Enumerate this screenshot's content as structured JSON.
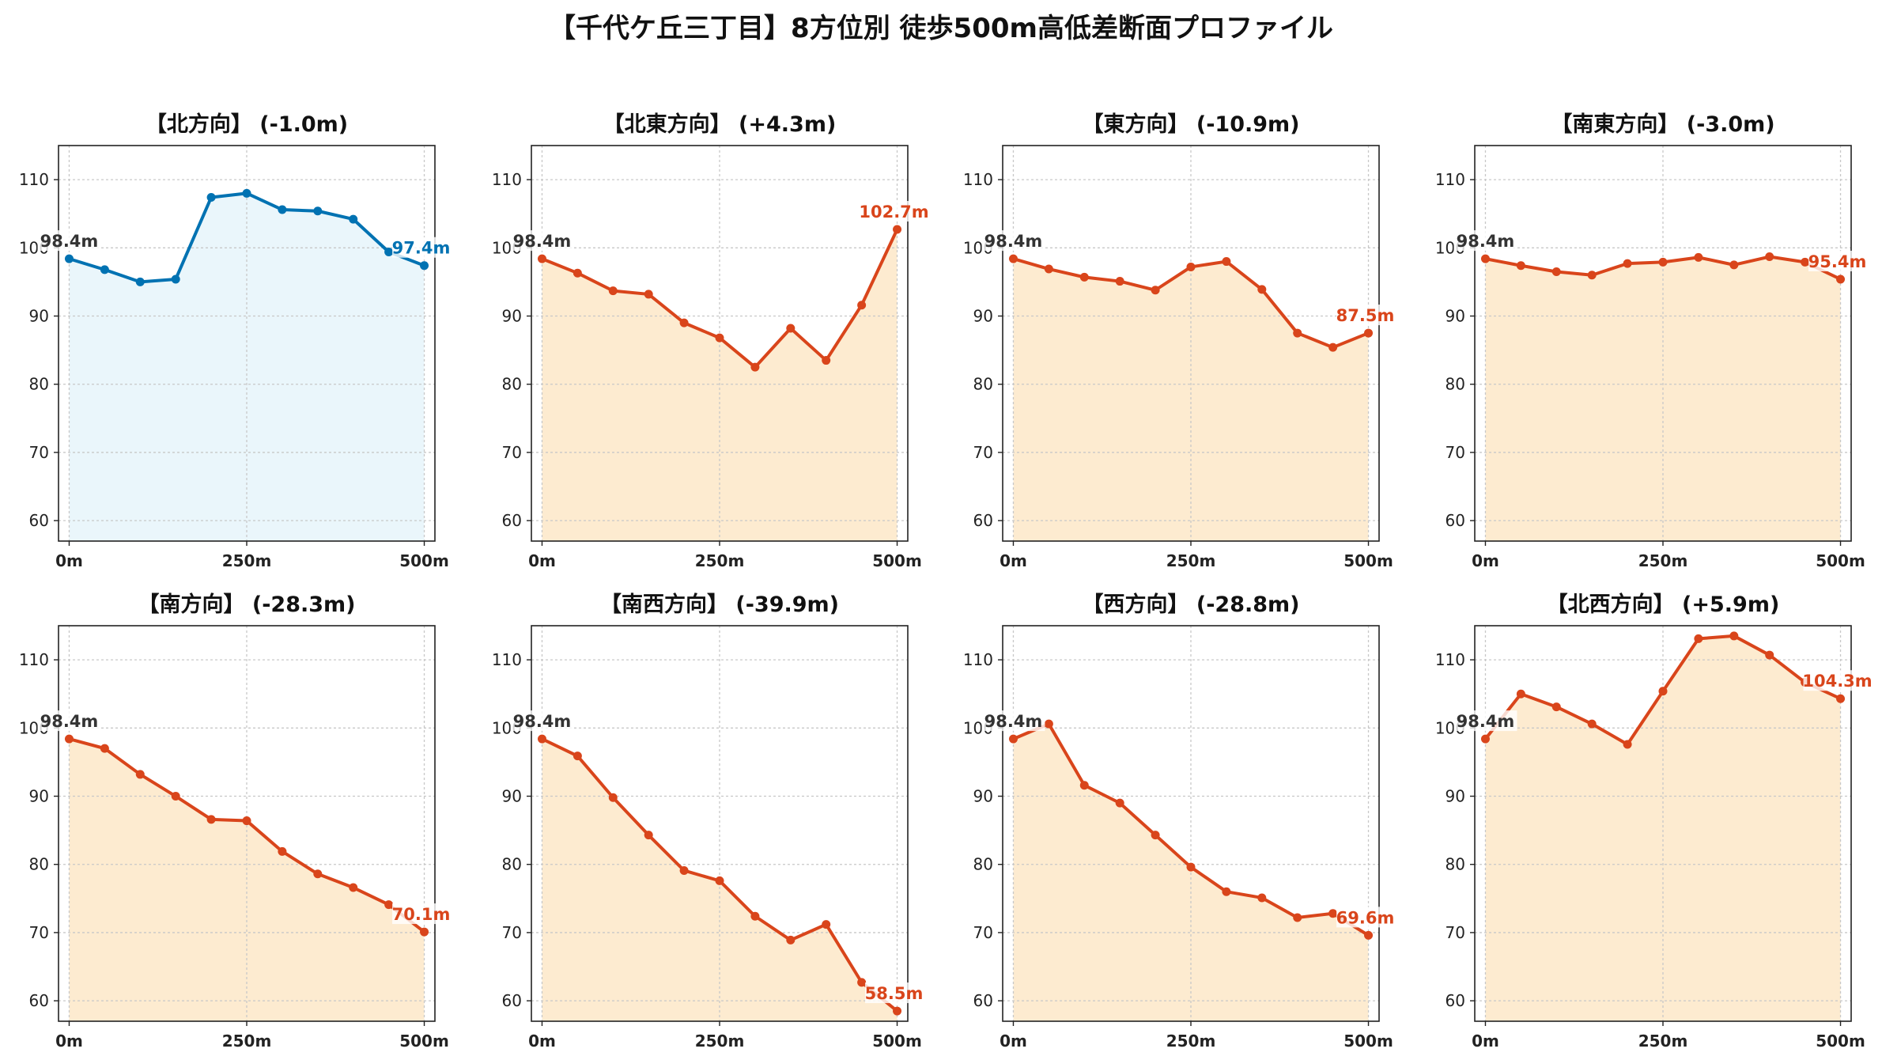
{
  "title": "【千代ケ丘三丁目】8方位別 徒歩500m高低差断面プロファイル",
  "colors": {
    "up_line": "#0072b2",
    "up_fill": "#eaf6fb",
    "down_line": "#d9451b",
    "down_fill": "#fdebd0",
    "start_label": "#333333"
  },
  "chart_data": [
    {
      "type": "line",
      "title": "【北方向】 (-1.0m)",
      "trend": "up",
      "x": [
        0,
        50,
        100,
        150,
        200,
        250,
        300,
        350,
        400,
        450,
        500
      ],
      "y": [
        98.4,
        96.8,
        95.0,
        95.4,
        107.4,
        108.0,
        105.6,
        105.4,
        104.2,
        99.4,
        97.4
      ],
      "start_label": "98.4m",
      "end_label": "97.4m",
      "xticks": [
        "0m",
        "250m",
        "500m"
      ],
      "yticks": [
        60,
        70,
        80,
        90,
        100,
        110
      ],
      "xlim": [
        -15,
        515
      ],
      "ylim": [
        57,
        115
      ],
      "grid": true
    },
    {
      "type": "line",
      "title": "【北東方向】 (+4.3m)",
      "trend": "down",
      "x": [
        0,
        50,
        100,
        150,
        200,
        250,
        300,
        350,
        400,
        450,
        500
      ],
      "y": [
        98.4,
        96.3,
        93.7,
        93.2,
        89.0,
        86.8,
        82.5,
        88.2,
        83.5,
        91.6,
        102.7
      ],
      "start_label": "98.4m",
      "end_label": "102.7m",
      "xticks": [
        "0m",
        "250m",
        "500m"
      ],
      "yticks": [
        60,
        70,
        80,
        90,
        100,
        110
      ],
      "xlim": [
        -15,
        515
      ],
      "ylim": [
        57,
        115
      ],
      "grid": true
    },
    {
      "type": "line",
      "title": "【東方向】 (-10.9m)",
      "trend": "down",
      "x": [
        0,
        50,
        100,
        150,
        200,
        250,
        300,
        350,
        400,
        450,
        500
      ],
      "y": [
        98.4,
        96.9,
        95.7,
        95.1,
        93.8,
        97.2,
        98.0,
        93.9,
        87.5,
        85.4,
        87.5
      ],
      "start_label": "98.4m",
      "end_label": "87.5m",
      "xticks": [
        "0m",
        "250m",
        "500m"
      ],
      "yticks": [
        60,
        70,
        80,
        90,
        100,
        110
      ],
      "xlim": [
        -15,
        515
      ],
      "ylim": [
        57,
        115
      ],
      "grid": true
    },
    {
      "type": "line",
      "title": "【南東方向】 (-3.0m)",
      "trend": "down",
      "x": [
        0,
        50,
        100,
        150,
        200,
        250,
        300,
        350,
        400,
        450,
        500
      ],
      "y": [
        98.4,
        97.4,
        96.5,
        96.0,
        97.7,
        97.9,
        98.6,
        97.5,
        98.7,
        97.9,
        95.4
      ],
      "start_label": "98.4m",
      "end_label": "95.4m",
      "xticks": [
        "0m",
        "250m",
        "500m"
      ],
      "yticks": [
        60,
        70,
        80,
        90,
        100,
        110
      ],
      "xlim": [
        -15,
        515
      ],
      "ylim": [
        57,
        115
      ],
      "grid": true
    },
    {
      "type": "line",
      "title": "【南方向】 (-28.3m)",
      "trend": "down",
      "x": [
        0,
        50,
        100,
        150,
        200,
        250,
        300,
        350,
        400,
        450,
        500
      ],
      "y": [
        98.4,
        97.0,
        93.2,
        90.0,
        86.6,
        86.4,
        81.9,
        78.6,
        76.6,
        74.1,
        70.1
      ],
      "start_label": "98.4m",
      "end_label": "70.1m",
      "xticks": [
        "0m",
        "250m",
        "500m"
      ],
      "yticks": [
        60,
        70,
        80,
        90,
        100,
        110
      ],
      "xlim": [
        -15,
        515
      ],
      "ylim": [
        57,
        115
      ],
      "grid": true
    },
    {
      "type": "line",
      "title": "【南西方向】 (-39.9m)",
      "trend": "down",
      "x": [
        0,
        50,
        100,
        150,
        200,
        250,
        300,
        350,
        400,
        450,
        500
      ],
      "y": [
        98.4,
        95.9,
        89.8,
        84.3,
        79.1,
        77.6,
        72.4,
        68.9,
        71.2,
        62.7,
        58.5
      ],
      "start_label": "98.4m",
      "end_label": "58.5m",
      "xticks": [
        "0m",
        "250m",
        "500m"
      ],
      "yticks": [
        60,
        70,
        80,
        90,
        100,
        110
      ],
      "xlim": [
        -15,
        515
      ],
      "ylim": [
        57,
        115
      ],
      "grid": true
    },
    {
      "type": "line",
      "title": "【西方向】 (-28.8m)",
      "trend": "down",
      "x": [
        0,
        50,
        100,
        150,
        200,
        250,
        300,
        350,
        400,
        450,
        500
      ],
      "y": [
        98.4,
        100.6,
        91.6,
        89.0,
        84.3,
        79.6,
        76.0,
        75.1,
        72.2,
        72.8,
        69.6
      ],
      "start_label": "98.4m",
      "end_label": "69.6m",
      "xticks": [
        "0m",
        "250m",
        "500m"
      ],
      "yticks": [
        60,
        70,
        80,
        90,
        100,
        110
      ],
      "xlim": [
        -15,
        515
      ],
      "ylim": [
        57,
        115
      ],
      "grid": true
    },
    {
      "type": "line",
      "title": "【北西方向】 (+5.9m)",
      "trend": "down",
      "x": [
        0,
        50,
        100,
        150,
        200,
        250,
        300,
        350,
        400,
        450,
        500
      ],
      "y": [
        98.4,
        105.0,
        103.1,
        100.6,
        97.6,
        105.4,
        113.1,
        113.5,
        110.7,
        106.7,
        104.3
      ],
      "start_label": "98.4m",
      "end_label": "104.3m",
      "xticks": [
        "0m",
        "250m",
        "500m"
      ],
      "yticks": [
        60,
        70,
        80,
        90,
        100,
        110
      ],
      "xlim": [
        -15,
        515
      ],
      "ylim": [
        57,
        115
      ],
      "grid": true
    }
  ]
}
